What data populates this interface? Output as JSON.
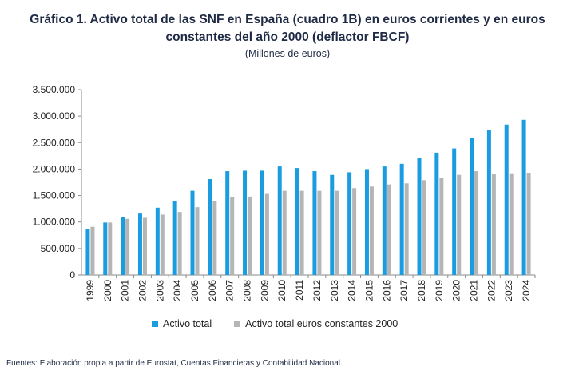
{
  "title": "Gráfico 1. Activo total de las SNF en España (cuadro 1B) en euros corrientes y en euros constantes del año 2000 (deflactor FBCF)",
  "title_line1": "Gráfico 1. Activo total de las SNF en España (cuadro 1B) en euros corrientes y en euros",
  "title_line2": "constantes del año 2000 (deflactor FBCF)",
  "subtitle": "(Millones de euros)",
  "source": "Fuentes: Elaboración propia a partir de Eurostat, Cuentas Financieras y Contabilidad Nacional.",
  "colors": {
    "activo_total": "#1a9de0",
    "activo_constantes": "#b5b5b5",
    "axis": "#8a8a8a"
  },
  "chart_data": {
    "type": "bar",
    "categories": [
      "1999",
      "2000",
      "2001",
      "2002",
      "2003",
      "2004",
      "2005",
      "2006",
      "2007",
      "2008",
      "2009",
      "2010",
      "2011",
      "2012",
      "2013",
      "2014",
      "2015",
      "2016",
      "2017",
      "2018",
      "2019",
      "2020",
      "2021",
      "2022",
      "2023",
      "2024"
    ],
    "series": [
      {
        "name": "Activo total",
        "values": [
          860000,
          990000,
          1090000,
          1160000,
          1270000,
          1400000,
          1590000,
          1810000,
          1960000,
          1970000,
          1970000,
          2050000,
          2020000,
          1960000,
          1890000,
          1940000,
          2000000,
          2050000,
          2100000,
          2210000,
          2310000,
          2390000,
          2580000,
          2730000,
          2840000,
          2930000
        ]
      },
      {
        "name": "Activo total euros constantes 2000",
        "values": [
          910000,
          990000,
          1060000,
          1080000,
          1140000,
          1190000,
          1280000,
          1400000,
          1470000,
          1480000,
          1530000,
          1590000,
          1590000,
          1590000,
          1590000,
          1640000,
          1670000,
          1710000,
          1730000,
          1790000,
          1840000,
          1890000,
          1960000,
          1910000,
          1920000,
          1930000
        ]
      }
    ],
    "ylim": [
      0,
      3500000
    ],
    "yticks": [
      0,
      500000,
      1000000,
      1500000,
      2000000,
      2500000,
      3000000,
      3500000
    ],
    "ytick_labels": [
      "0",
      "500.000",
      "1.000.000",
      "1.500.000",
      "2.000.000",
      "2.500.000",
      "3.000.000",
      "3.500.000"
    ],
    "grid": false,
    "legend_position": "bottom"
  }
}
